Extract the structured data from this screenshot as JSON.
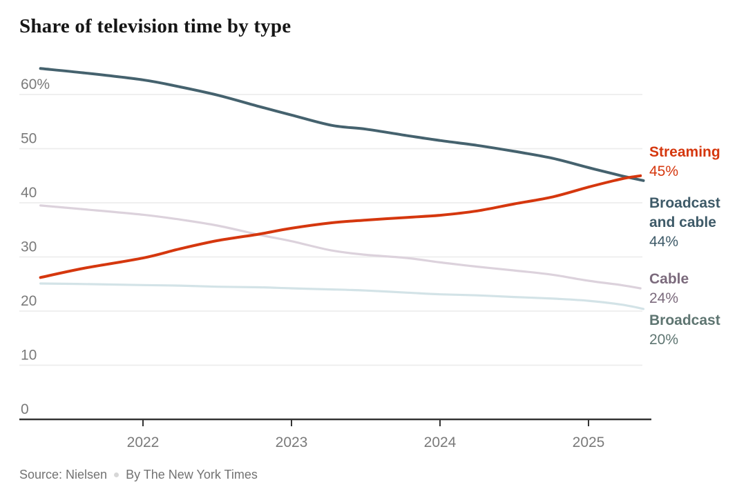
{
  "page_title": "Share of television time by type",
  "source": {
    "source_text": "Source: Nielsen",
    "byline_text": "By The New York Times",
    "separator": "dot"
  },
  "colors": {
    "title": "#161616",
    "axis_line": "#333333",
    "gridline": "#ededed",
    "tick_label": "#7a7a7a",
    "source_text": "#727272",
    "streaming": "#d5370e",
    "broadcast_and_cable": "#45626e",
    "cable_line": "#dcd2dc",
    "cable_text": "#7b6a7c",
    "broadcast_line": "#d3e3e7",
    "broadcast_text": "#5e7571"
  },
  "chart_data": {
    "type": "line",
    "title": "Share of television time by type",
    "xlabel": "",
    "ylabel": "",
    "grid": true,
    "legend_position": "right-end-labels",
    "x_range": [
      2021.31,
      2025.42
    ],
    "y_range": [
      0,
      66
    ],
    "x_ticks": [
      {
        "value": 2022,
        "label": "2022"
      },
      {
        "value": 2023,
        "label": "2023"
      },
      {
        "value": 2024,
        "label": "2024"
      },
      {
        "value": 2025,
        "label": "2025"
      }
    ],
    "y_ticks": [
      {
        "value": 60,
        "label": "60%"
      },
      {
        "value": 50,
        "label": "50"
      },
      {
        "value": 40,
        "label": "40"
      },
      {
        "value": 30,
        "label": "30"
      },
      {
        "value": 20,
        "label": "20"
      },
      {
        "value": 10,
        "label": "10"
      },
      {
        "value": 0,
        "label": "0"
      }
    ],
    "series": [
      {
        "name": "Streaming",
        "end_label": "Streaming",
        "end_value_label": "45%",
        "end_value": 45,
        "color": "#d5370e",
        "label_color": "#d5370e",
        "width": 4,
        "points": [
          [
            2021.31,
            26.2
          ],
          [
            2021.6,
            27.9
          ],
          [
            2022.0,
            29.8
          ],
          [
            2022.25,
            31.5
          ],
          [
            2022.5,
            33.0
          ],
          [
            2022.78,
            34.2
          ],
          [
            2023.0,
            35.3
          ],
          [
            2023.27,
            36.3
          ],
          [
            2023.5,
            36.8
          ],
          [
            2023.78,
            37.3
          ],
          [
            2024.0,
            37.7
          ],
          [
            2024.25,
            38.5
          ],
          [
            2024.5,
            39.8
          ],
          [
            2024.76,
            41.1
          ],
          [
            2025.0,
            42.9
          ],
          [
            2025.22,
            44.4
          ],
          [
            2025.35,
            45.0
          ]
        ]
      },
      {
        "name": "Broadcast and cable",
        "end_label": "Broadcast and cable",
        "end_value_label": "44%",
        "end_value": 44,
        "color": "#45626e",
        "label_color": "#3e5a68",
        "width": 4,
        "points": [
          [
            2021.31,
            64.8
          ],
          [
            2021.6,
            64.0
          ],
          [
            2022.0,
            62.7
          ],
          [
            2022.25,
            61.4
          ],
          [
            2022.5,
            59.9
          ],
          [
            2022.78,
            57.8
          ],
          [
            2023.0,
            56.2
          ],
          [
            2023.27,
            54.3
          ],
          [
            2023.5,
            53.6
          ],
          [
            2023.78,
            52.4
          ],
          [
            2024.0,
            51.5
          ],
          [
            2024.25,
            50.6
          ],
          [
            2024.5,
            49.5
          ],
          [
            2024.76,
            48.2
          ],
          [
            2025.0,
            46.5
          ],
          [
            2025.22,
            45.0
          ],
          [
            2025.37,
            44.1
          ]
        ]
      },
      {
        "name": "Cable",
        "end_label": "Cable",
        "end_value_label": "24%",
        "end_value": 24,
        "color": "#dcd2dc",
        "label_color": "#7b6a7c",
        "width": 3.2,
        "points": [
          [
            2021.31,
            39.5
          ],
          [
            2021.6,
            38.8
          ],
          [
            2022.0,
            37.8
          ],
          [
            2022.25,
            36.9
          ],
          [
            2022.5,
            35.8
          ],
          [
            2022.78,
            34.1
          ],
          [
            2023.0,
            32.9
          ],
          [
            2023.27,
            31.2
          ],
          [
            2023.5,
            30.4
          ],
          [
            2023.78,
            29.8
          ],
          [
            2024.0,
            29.0
          ],
          [
            2024.25,
            28.2
          ],
          [
            2024.5,
            27.5
          ],
          [
            2024.76,
            26.7
          ],
          [
            2025.0,
            25.6
          ],
          [
            2025.22,
            24.8
          ],
          [
            2025.35,
            24.2
          ]
        ]
      },
      {
        "name": "Broadcast",
        "end_label": "Broadcast",
        "end_value_label": "20%",
        "end_value": 20,
        "color": "#d3e3e7",
        "label_color": "#5e7571",
        "width": 3.2,
        "points": [
          [
            2021.31,
            25.1
          ],
          [
            2021.6,
            25.0
          ],
          [
            2022.0,
            24.8
          ],
          [
            2022.25,
            24.7
          ],
          [
            2022.5,
            24.5
          ],
          [
            2022.78,
            24.4
          ],
          [
            2023.0,
            24.2
          ],
          [
            2023.27,
            24.0
          ],
          [
            2023.5,
            23.8
          ],
          [
            2023.78,
            23.4
          ],
          [
            2024.0,
            23.1
          ],
          [
            2024.25,
            22.9
          ],
          [
            2024.5,
            22.6
          ],
          [
            2024.76,
            22.3
          ],
          [
            2025.0,
            21.9
          ],
          [
            2025.22,
            21.2
          ],
          [
            2025.37,
            20.4
          ]
        ]
      }
    ]
  }
}
